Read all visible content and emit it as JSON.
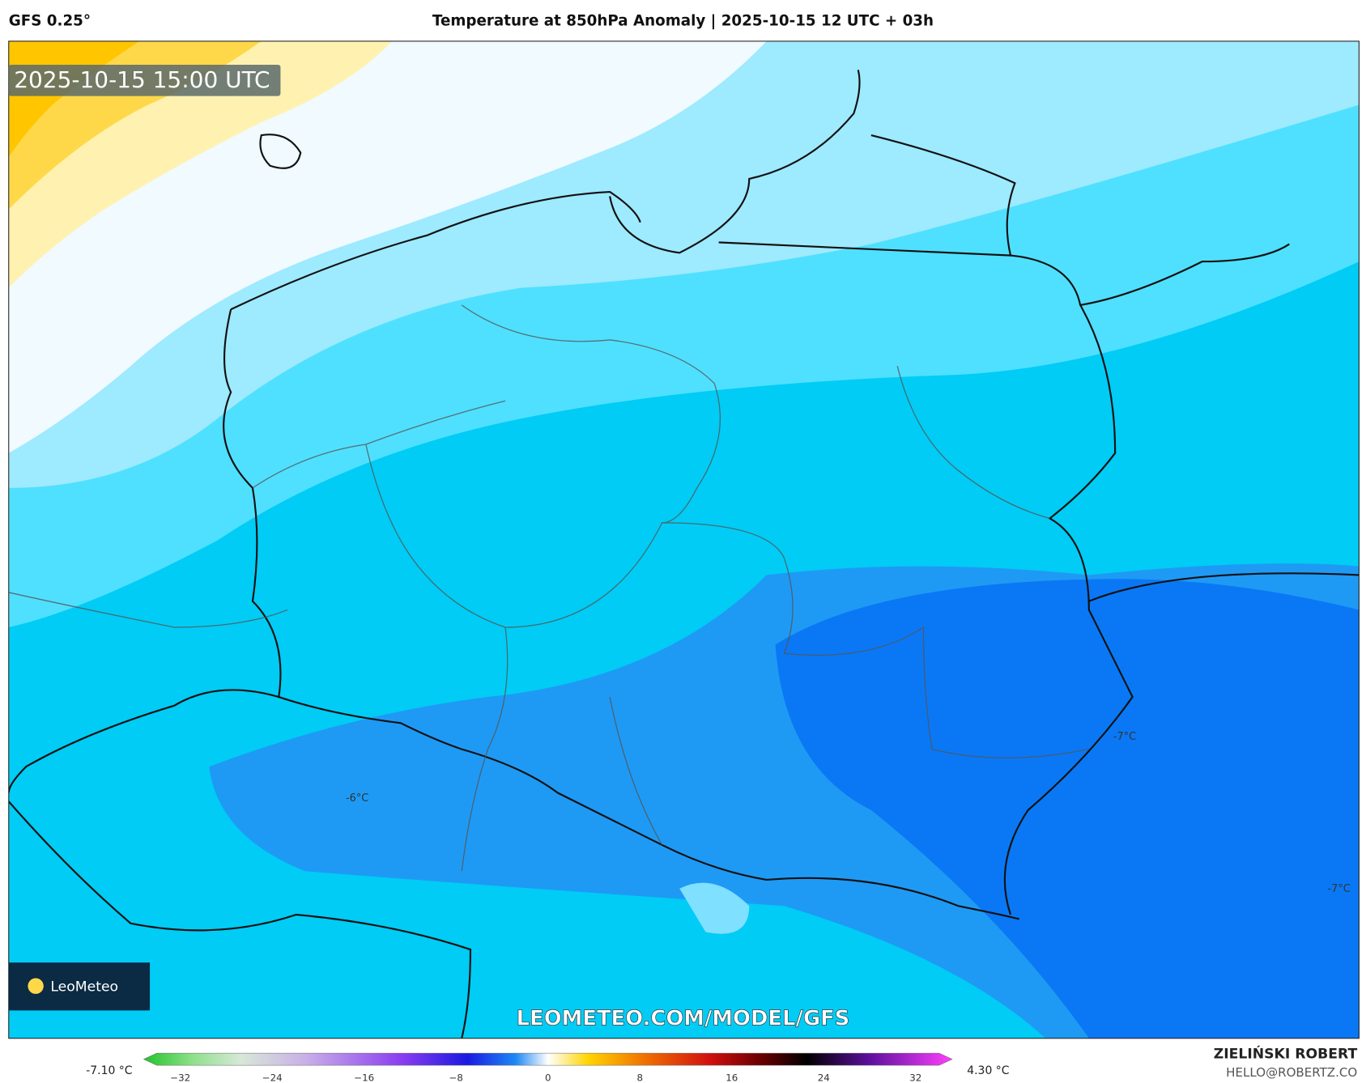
{
  "header": {
    "model": "GFS 0.25°",
    "title": "Temperature at 850hPa Anomaly | 2025-10-15 12 UTC + 03h"
  },
  "map": {
    "timestamp": "2025-10-15 15:00 UTC",
    "watermark": "LEOMETEO.COM/MODEL/GFS",
    "logo": "LeoMeteo",
    "contour_labels": [
      "-6°C",
      "-7°C",
      "-7°C"
    ]
  },
  "colorbar": {
    "min_label": "-7.10 °C",
    "max_label": "4.30 °C",
    "ticks": [
      "−32",
      "−24",
      "−16",
      "−8",
      "0",
      "8",
      "16",
      "24",
      "32"
    ]
  },
  "credits": {
    "author": "ZIELIŃSKI ROBERT",
    "contact": "HELLO@ROBERTZ.CO"
  }
}
